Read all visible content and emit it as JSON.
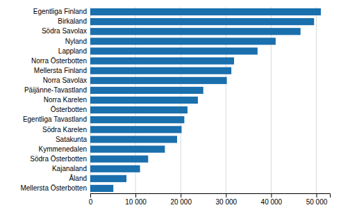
{
  "chart_data": {
    "type": "bar",
    "orientation": "horizontal",
    "categories": [
      "Mellersta Österbotten",
      "Åland",
      "Kajanaland",
      "Södra Österbotten",
      "Kymmenedalen",
      "Satakunta",
      "Södra Karelen",
      "Egentliga Tavastland",
      "Österbotten",
      "Norra Karelen",
      "Päijänne-Tavastland",
      "Norra Savolax",
      "Mellersta Finland",
      "Norra Österbotten",
      "Lappland",
      "Nyland",
      "Södra Savolax",
      "Birkaland",
      "Egentliga Finland"
    ],
    "values": [
      5100,
      8000,
      11000,
      12800,
      16500,
      19200,
      20200,
      20800,
      21500,
      23800,
      25000,
      30200,
      31200,
      31800,
      37000,
      41000,
      46500,
      49500,
      51000
    ],
    "color": "#1a6fad",
    "xlim": [
      0,
      53000
    ],
    "xticks": [
      0,
      {
        "value": 10000,
        "label": "10 000"
      },
      {
        "value": 20000,
        "label": "20 000"
      },
      {
        "value": 30000,
        "label": "30 000"
      },
      {
        "value": 40000,
        "label": "40 000"
      },
      {
        "value": 50000,
        "label": "50 000"
      }
    ],
    "grid": true
  }
}
